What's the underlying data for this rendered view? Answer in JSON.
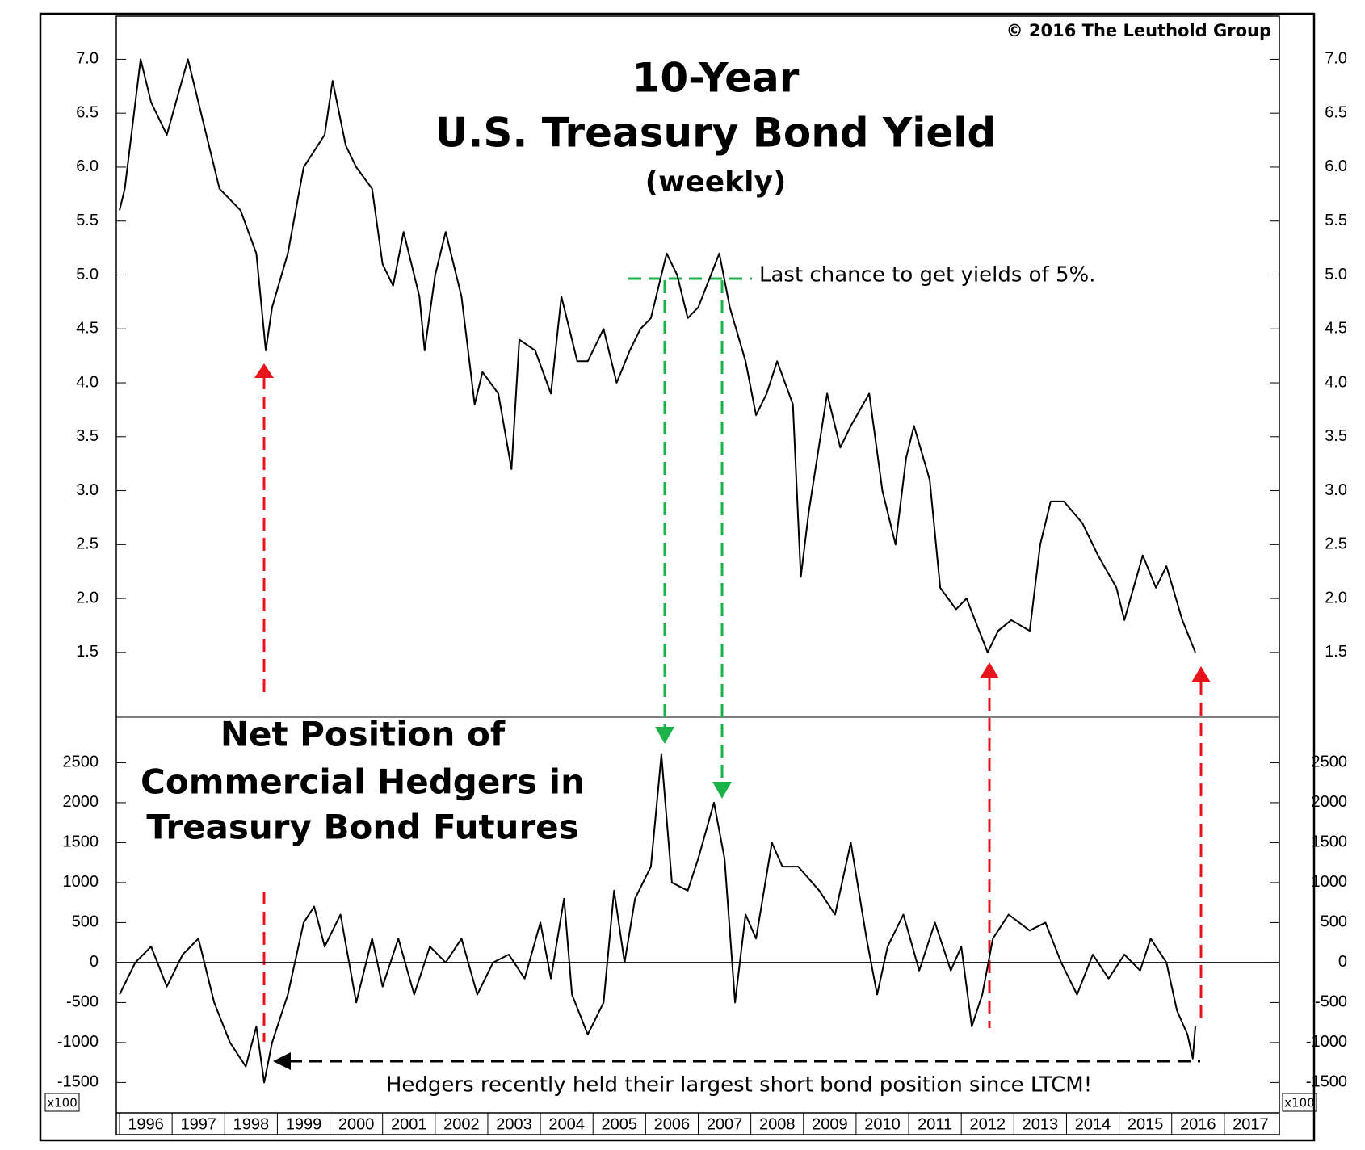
{
  "chart_data": [
    {
      "type": "line",
      "annotations": {
        "copyright": "© 2016 The Leuthold Group",
        "title_line1": "10-Year",
        "title_line2": "U.S. Treasury Bond Yield",
        "subtitle": "(weekly)",
        "note": "Last chance to get yields of 5%."
      },
      "xlim": [
        1996,
        2018
      ],
      "ylim": [
        0.9,
        7.4
      ],
      "yticks": [
        1.5,
        {
          "value": 2,
          "label": "2.0"
        },
        2.5,
        {
          "value": 3,
          "label": "3.0"
        },
        3.5,
        {
          "value": 4,
          "label": "4.0"
        },
        4.5,
        {
          "value": 5,
          "label": "5.0"
        },
        5.5,
        {
          "value": 6,
          "label": "6.0"
        },
        6.5,
        {
          "value": 7,
          "label": "7.0"
        }
      ],
      "color": "#000000",
      "x": [
        1996.0,
        1996.1,
        1996.4,
        1996.6,
        1996.9,
        1997.3,
        1997.6,
        1997.9,
        1998.3,
        1998.6,
        1998.78,
        1998.9,
        1999.2,
        1999.5,
        1999.9,
        2000.05,
        2000.3,
        2000.5,
        2000.8,
        2001.0,
        2001.2,
        2001.4,
        2001.7,
        2001.8,
        2002.0,
        2002.2,
        2002.5,
        2002.75,
        2002.9,
        2003.2,
        2003.45,
        2003.6,
        2003.9,
        2004.2,
        2004.4,
        2004.7,
        2004.9,
        2005.2,
        2005.45,
        2005.7,
        2005.9,
        2006.1,
        2006.4,
        2006.6,
        2006.8,
        2007.0,
        2007.4,
        2007.6,
        2007.9,
        2008.1,
        2008.3,
        2008.5,
        2008.8,
        2008.95,
        2009.1,
        2009.45,
        2009.7,
        2009.9,
        2010.25,
        2010.5,
        2010.75,
        2010.95,
        2011.1,
        2011.4,
        2011.6,
        2011.9,
        2012.1,
        2012.5,
        2012.7,
        2012.95,
        2013.3,
        2013.5,
        2013.7,
        2013.95,
        2014.3,
        2014.6,
        2014.95,
        2015.1,
        2015.45,
        2015.7,
        2015.9,
        2016.2,
        2016.45
      ],
      "values": [
        5.6,
        5.8,
        7.0,
        6.6,
        6.3,
        7.0,
        6.4,
        5.8,
        5.6,
        5.2,
        4.3,
        4.7,
        5.2,
        6.0,
        6.3,
        6.8,
        6.2,
        6.0,
        5.8,
        5.1,
        4.9,
        5.4,
        4.8,
        4.3,
        5.0,
        5.4,
        4.8,
        3.8,
        4.1,
        3.9,
        3.2,
        4.4,
        4.3,
        3.9,
        4.8,
        4.2,
        4.2,
        4.5,
        4.0,
        4.3,
        4.5,
        4.6,
        5.2,
        5.0,
        4.6,
        4.7,
        5.2,
        4.7,
        4.2,
        3.7,
        3.9,
        4.2,
        3.8,
        2.2,
        2.8,
        3.9,
        3.4,
        3.6,
        3.9,
        3.0,
        2.5,
        3.3,
        3.6,
        3.1,
        2.1,
        1.9,
        2.0,
        1.5,
        1.7,
        1.8,
        1.7,
        2.5,
        2.9,
        2.9,
        2.7,
        2.4,
        2.1,
        1.8,
        2.4,
        2.1,
        2.3,
        1.8,
        1.5
      ]
    },
    {
      "type": "line",
      "annotations": {
        "title_line1": "Net Position  of",
        "title_line2": "Commercial Hedgers in",
        "title_line3": "Treasury Bond Futures",
        "note": "Hedgers recently held their largest short bond position since LTCM!",
        "unit": "x100"
      },
      "xlim": [
        1996,
        2018
      ],
      "xticks": [
        1996,
        1997,
        1998,
        1999,
        2000,
        2001,
        2002,
        2003,
        2004,
        2005,
        2006,
        2007,
        2008,
        2009,
        2010,
        2011,
        2012,
        2013,
        2014,
        2015,
        2016,
        2017
      ],
      "ylim": [
        -1880,
        3070
      ],
      "yticks": [
        -1500,
        -1000,
        -500,
        0,
        500,
        1000,
        1500,
        2000,
        2500
      ],
      "color": "#000000",
      "x": [
        1996.0,
        1996.3,
        1996.6,
        1996.9,
        1997.2,
        1997.5,
        1997.8,
        1998.1,
        1998.4,
        1998.6,
        1998.75,
        1998.9,
        1999.2,
        1999.5,
        1999.7,
        1999.9,
        2000.2,
        2000.5,
        2000.8,
        2001.0,
        2001.3,
        2001.6,
        2001.9,
        2002.2,
        2002.5,
        2002.8,
        2003.1,
        2003.4,
        2003.7,
        2004.0,
        2004.2,
        2004.45,
        2004.6,
        2004.9,
        2005.2,
        2005.4,
        2005.6,
        2005.8,
        2006.1,
        2006.3,
        2006.5,
        2006.8,
        2007.0,
        2007.3,
        2007.5,
        2007.7,
        2007.9,
        2008.1,
        2008.4,
        2008.6,
        2008.9,
        2009.3,
        2009.6,
        2009.9,
        2010.2,
        2010.4,
        2010.6,
        2010.9,
        2011.2,
        2011.5,
        2011.8,
        2012.0,
        2012.2,
        2012.4,
        2012.6,
        2012.9,
        2013.3,
        2013.6,
        2013.9,
        2014.2,
        2014.5,
        2014.8,
        2015.1,
        2015.4,
        2015.6,
        2015.9,
        2016.1,
        2016.3,
        2016.4,
        2016.45
      ],
      "values": [
        -400,
        0,
        200,
        -300,
        100,
        300,
        -500,
        -1000,
        -1300,
        -800,
        -1500,
        -1000,
        -400,
        500,
        700,
        200,
        600,
        -500,
        300,
        -300,
        300,
        -400,
        200,
        0,
        300,
        -400,
        0,
        100,
        -200,
        500,
        -200,
        800,
        -400,
        -900,
        -500,
        900,
        0,
        800,
        1200,
        2600,
        1000,
        900,
        1300,
        2000,
        1300,
        -500,
        600,
        300,
        1500,
        1200,
        1200,
        900,
        600,
        1500,
        300,
        -400,
        200,
        600,
        -100,
        500,
        -100,
        200,
        -800,
        -400,
        300,
        600,
        400,
        500,
        0,
        -400,
        100,
        -200,
        100,
        -100,
        300,
        0,
        -600,
        -900,
        -1200,
        -800
      ]
    }
  ]
}
